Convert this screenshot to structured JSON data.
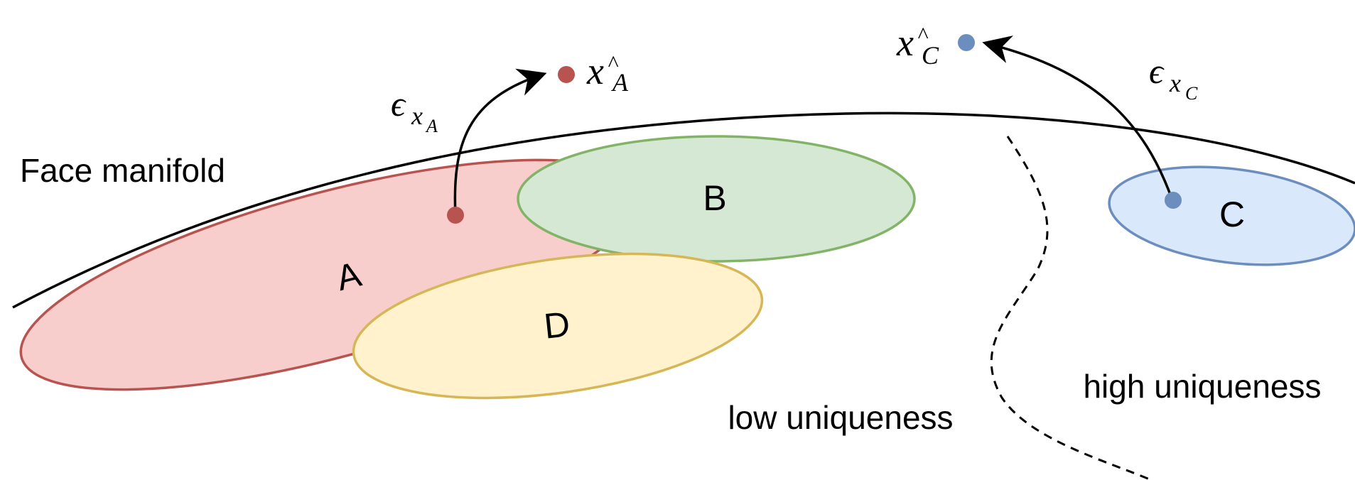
{
  "labels": {
    "manifold": "Face manifold",
    "cluster_a": "A",
    "cluster_b": "B",
    "cluster_c": "C",
    "cluster_d": "D",
    "low_uniqueness": "low uniqueness",
    "high_uniqueness": "high uniqueness"
  },
  "math": {
    "epsilon_a": {
      "symbol": "ϵ",
      "sub": "x",
      "subsub": "A"
    },
    "epsilon_c": {
      "symbol": "ϵ",
      "sub": "x",
      "subsub": "C"
    },
    "xhat_a": {
      "base": "x",
      "hat": "^",
      "sub": "A"
    },
    "xhat_c": {
      "base": "x",
      "hat": "^",
      "sub": "C"
    }
  },
  "colors": {
    "red_fill": "#f8cecc",
    "red_stroke": "#b85450",
    "green_fill": "#d5e8d4",
    "green_stroke": "#82b366",
    "yellow_fill": "#fff2cc",
    "yellow_stroke": "#d6b656",
    "blue_fill": "#dae8fc",
    "blue_stroke": "#6c8ebf",
    "red_point": "#b85450",
    "blue_point": "#6c8ebf",
    "line": "#000000"
  }
}
